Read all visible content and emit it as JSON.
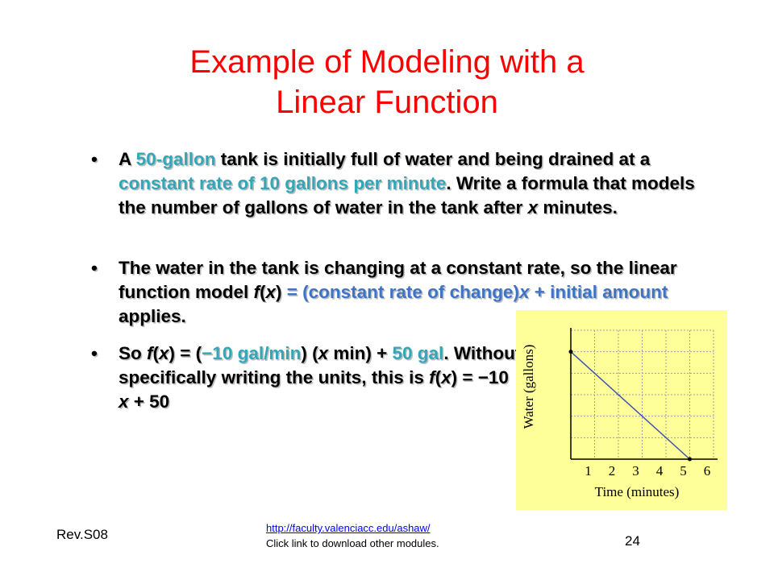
{
  "slide": {
    "title_line1": "Example of Modeling with a",
    "title_line2": "Linear Function"
  },
  "bullets": {
    "b1": {
      "t1": "A ",
      "h1": "50-gallon",
      "t2": " tank is initially full of water and being drained at a ",
      "h2": "constant rate of 10 gallons per minute",
      "t3": ".  Write a formula that models the number of gallons of water in the tank after ",
      "x": "x",
      "t4": " minutes."
    },
    "b2": {
      "t1": "The water in the tank is changing at a constant rate, so the linear function model  ",
      "f": "f",
      "p1": "(",
      "x": "x",
      "p2": ")",
      "h1": " = (constant rate of change)",
      "hx": "x",
      "h2": " + initial amount",
      "t2": "  applies."
    },
    "b3": {
      "t1": "So ",
      "f": "f",
      "p1": "(",
      "x": "x",
      "p2": ") = (",
      "h1": "−10 gal/min",
      "t2": ") (",
      "x2": "x",
      "t3": " min) + ",
      "h2": "50 gal",
      "t4": ". Without specifically writing the units, this is  ",
      "f2": "f",
      "p3": "(",
      "x3": "x",
      "p4": ") = −10 ",
      "x4": "x",
      "t5": " + 50"
    }
  },
  "chart_data": {
    "type": "line",
    "xlabel": "Time (minutes)",
    "ylabel": "Water (gallons)",
    "x_ticks": [
      "1",
      "2",
      "3",
      "4",
      "5",
      "6"
    ],
    "xlim": [
      0,
      6
    ],
    "ylim": [
      0,
      60
    ],
    "grid": true,
    "background": "#ffff99",
    "line_color": "#3f51b5",
    "series": [
      {
        "x": [
          0,
          5
        ],
        "y": [
          50,
          0
        ]
      }
    ]
  },
  "footer": {
    "rev": "Rev.S08",
    "link": "http://faculty.valenciacc.edu/ashaw/",
    "note": "Click link to download other modules.",
    "page": "24"
  },
  "colors": {
    "title": "#ff0000",
    "highlight_teal": "#33a6b8",
    "highlight_blue": "#3f74c5"
  }
}
